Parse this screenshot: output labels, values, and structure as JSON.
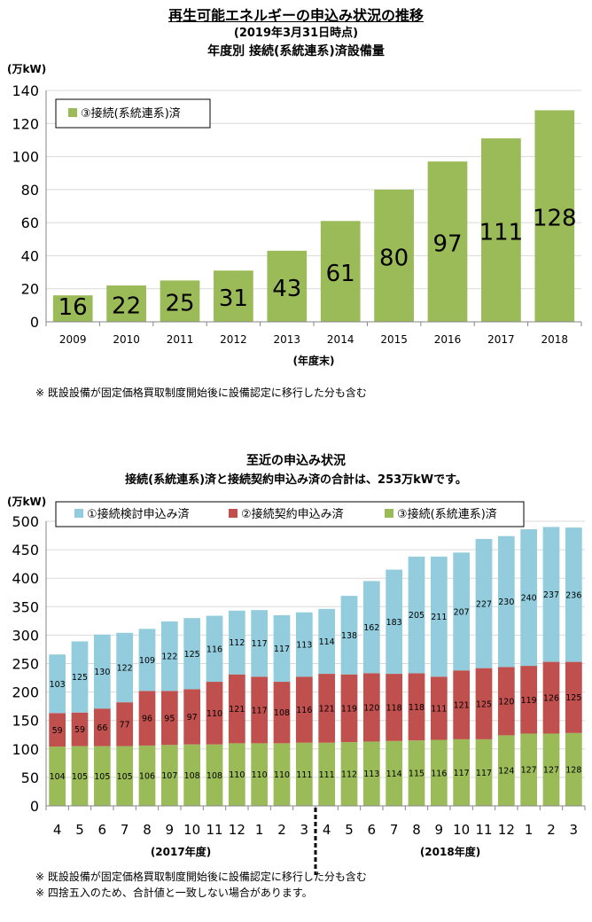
{
  "chart1": {
    "title": "再生可能エネルギーの申込み状況の推移",
    "subtitle_date": "(2019年3月31日時点)",
    "subtitle": "年度別 接続(系統連系)済設備量",
    "note": "※ 既設設備が固定価格買取制度開始後に設備認定に移行した分も含む",
    "colors": {
      "bar": "#9bbb59",
      "grid": "#d9d9d9",
      "axis": "#868686"
    }
  },
  "chart2": {
    "title": "至近の申込み状況",
    "subtitle": "接続(系統連系)済と接続契約申込み済の合計は、253万kWです。",
    "notes": [
      "※ 既設設備が固定価格買取制度開始後に設備認定に移行した分も含む",
      "※ 四捨五入のため、合計値と一致しない場合があります。"
    ],
    "colors": {
      "s1": "#93cddd",
      "s2": "#c0504d",
      "s3": "#9bbb59",
      "grid": "#d9d9d9",
      "axis": "#868686"
    }
  },
  "chart_data": [
    {
      "type": "bar",
      "categories": [
        "2009",
        "2010",
        "2011",
        "2012",
        "2013",
        "2014",
        "2015",
        "2016",
        "2017",
        "2018"
      ],
      "series": [
        {
          "name": "③接続(系統連系)済",
          "values": [
            16,
            22,
            25,
            31,
            43,
            61,
            80,
            97,
            111,
            128
          ]
        }
      ],
      "ylabel": "(万kW)",
      "xlabel": "(年度末)",
      "ylim": [
        0,
        140
      ],
      "yticks": [
        0,
        20,
        40,
        60,
        80,
        100,
        120,
        140
      ],
      "grid": true,
      "legend": "top-left",
      "data_labels": true
    },
    {
      "type": "bar",
      "stacked": true,
      "categories": [
        "4",
        "5",
        "6",
        "7",
        "8",
        "9",
        "10",
        "11",
        "12",
        "1",
        "2",
        "3",
        "4",
        "5",
        "6",
        "7",
        "8",
        "9",
        "10",
        "11",
        "12",
        "1",
        "2",
        "3"
      ],
      "groups": [
        {
          "label": "(2017年度)"
        },
        {
          "label": "(2018年度)"
        }
      ],
      "series": [
        {
          "name": "③接続(系統連系)済",
          "values": [
            104,
            105,
            105,
            105,
            106,
            107,
            108,
            108,
            110,
            110,
            110,
            111,
            111,
            112,
            113,
            114,
            115,
            116,
            117,
            117,
            124,
            127,
            127,
            128
          ]
        },
        {
          "name": "②接続契約申込み済",
          "values": [
            59,
            59,
            66,
            77,
            96,
            95,
            97,
            110,
            121,
            117,
            108,
            116,
            121,
            119,
            120,
            118,
            118,
            111,
            121,
            125,
            120,
            119,
            126,
            125
          ]
        },
        {
          "name": "①接続検討申込み済",
          "values": [
            103,
            125,
            130,
            122,
            109,
            122,
            125,
            116,
            112,
            117,
            117,
            113,
            114,
            138,
            162,
            183,
            205,
            211,
            207,
            227,
            230,
            240,
            237,
            236
          ]
        }
      ],
      "ylabel": "(万kW)",
      "ylim": [
        0,
        500
      ],
      "yticks": [
        0,
        50,
        100,
        150,
        200,
        250,
        300,
        350,
        400,
        450,
        500
      ],
      "grid": true,
      "legend": "top",
      "data_labels": true
    }
  ]
}
